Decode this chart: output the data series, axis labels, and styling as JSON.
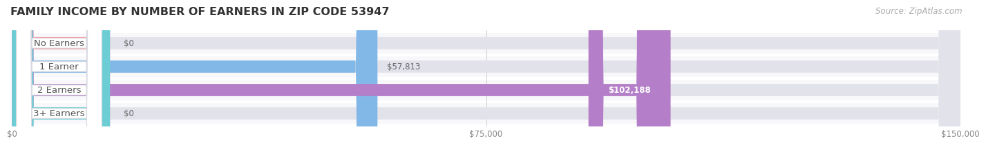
{
  "title": "FAMILY INCOME BY NUMBER OF EARNERS IN ZIP CODE 53947",
  "source": "Source: ZipAtlas.com",
  "categories": [
    "No Earners",
    "1 Earner",
    "2 Earners",
    "3+ Earners"
  ],
  "values": [
    0,
    57813,
    102188,
    0
  ],
  "bar_colors": [
    "#f4a0a8",
    "#82b8e8",
    "#b47ec8",
    "#6dcdd4"
  ],
  "text_colors": [
    "#888888",
    "#555555",
    "#555555",
    "#888888"
  ],
  "bg_color": "#f0f0f5",
  "bar_bg_color": "#e2e2ea",
  "row_bg_color": "#f8f8fb",
  "xlim": [
    0,
    150000
  ],
  "xtick_labels": [
    "$0",
    "$75,000",
    "$150,000"
  ],
  "value_labels": [
    "$0",
    "$57,813",
    "$102,188",
    "$0"
  ],
  "title_fontsize": 11.5,
  "label_fontsize": 9.5,
  "tick_fontsize": 8.5,
  "source_fontsize": 8.5
}
